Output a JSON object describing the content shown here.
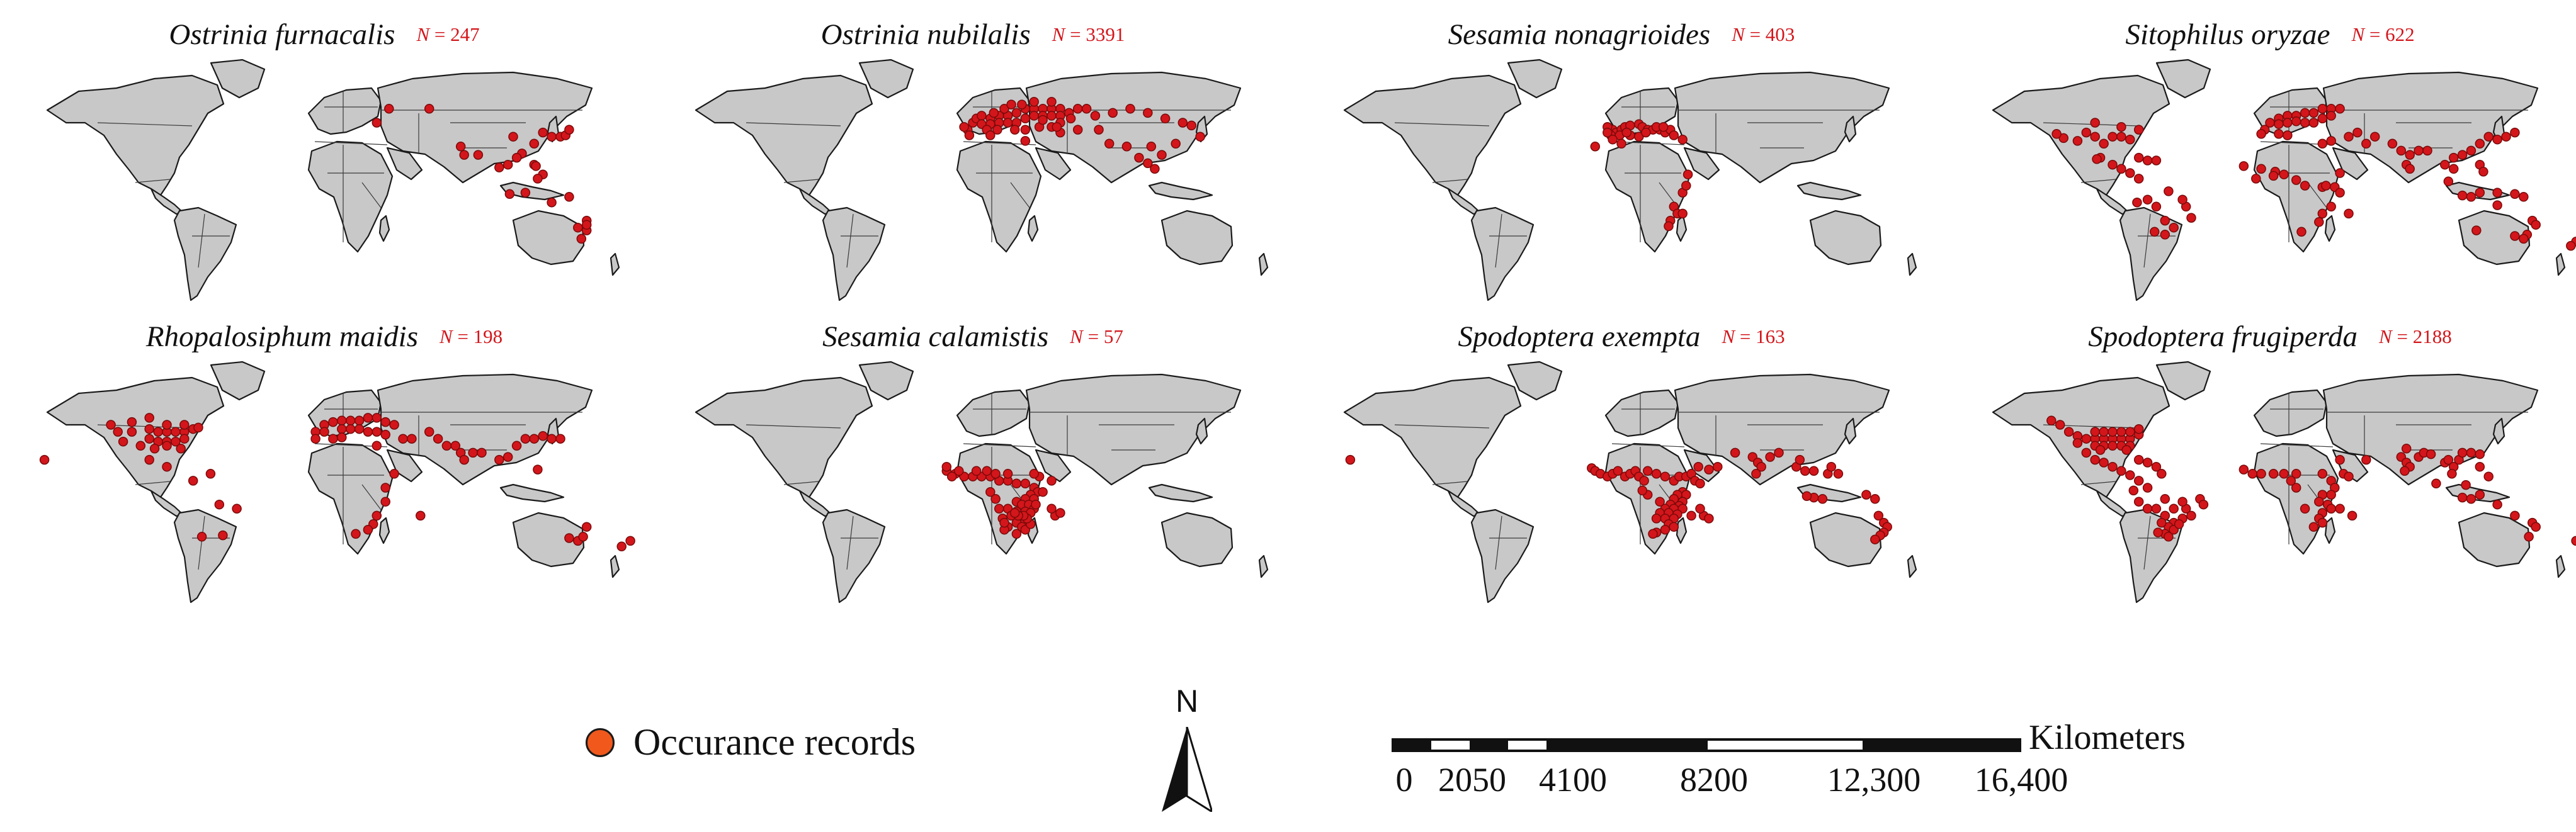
{
  "panels": [
    {
      "species": "Ostrinia furnacalis",
      "n_label": "N",
      "n_value": "= 247"
    },
    {
      "species": "Ostrinia nubilalis",
      "n_label": "N",
      "n_value": "= 3391"
    },
    {
      "species": "Sesamia nonagrioides",
      "n_label": "N",
      "n_value": "= 403"
    },
    {
      "species": "Sitophilus oryzae",
      "n_label": "N",
      "n_value": "= 622"
    },
    {
      "species": "Rhopalosiphum maidis",
      "n_label": "N",
      "n_value": "= 198"
    },
    {
      "species": "Sesamia calamistis",
      "n_label": "N",
      "n_value": "= 57"
    },
    {
      "species": "Spodoptera exempta",
      "n_label": "N",
      "n_value": "= 163"
    },
    {
      "species": "Spodoptera frugiperda",
      "n_label": "N",
      "n_value": "= 2188"
    }
  ],
  "legend": {
    "label": "Occurance records",
    "marker_color": "#f0581c"
  },
  "north_arrow": {
    "label": "N"
  },
  "scale_bar": {
    "unit": "Kilometers",
    "ticks": [
      "0",
      "2050",
      "4100",
      "8200",
      "12,300",
      "16,400"
    ],
    "tick_values": [
      0,
      2050,
      4100,
      8200,
      12300,
      16400
    ]
  },
  "colors": {
    "land": "#c8c8c8",
    "border": "#3a3a3a",
    "record": "#d3161b",
    "text_count": "#d3161b"
  }
}
